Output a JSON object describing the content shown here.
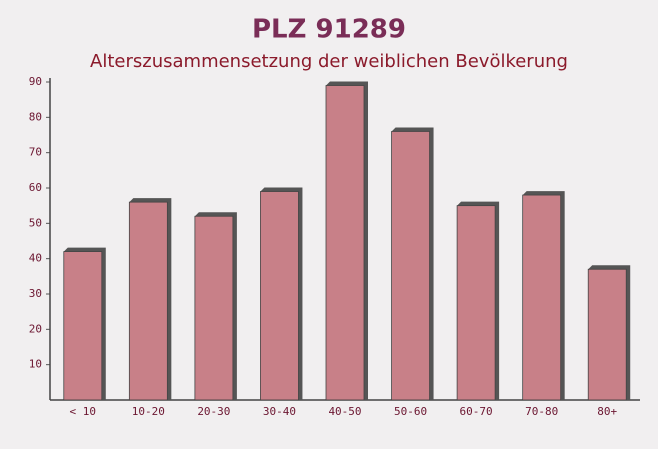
{
  "chart_data": {
    "type": "bar",
    "title": "PLZ 91289",
    "subtitle": "Alterszusammensetzung der weiblichen Bevölkerung",
    "categories": [
      "< 10",
      "10-20",
      "20-30",
      "30-40",
      "40-50",
      "50-60",
      "60-70",
      "70-80",
      "80+"
    ],
    "values": [
      42,
      56,
      52,
      59,
      89,
      76,
      55,
      58,
      37
    ],
    "color": "#c4767f",
    "ylim": [
      0,
      90
    ],
    "yticks": [
      10,
      20,
      30,
      40,
      50,
      60,
      70,
      80,
      90
    ]
  }
}
